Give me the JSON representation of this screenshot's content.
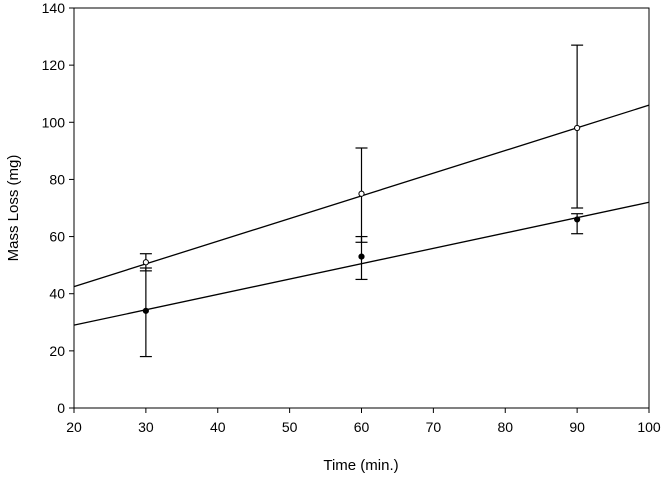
{
  "chart_data": {
    "type": "scatter",
    "title": "",
    "xlabel": "Time (min.)",
    "ylabel": "Mass Loss (mg)",
    "xlim": [
      20,
      100
    ],
    "ylim": [
      0,
      140
    ],
    "xticks": [
      20,
      30,
      40,
      50,
      60,
      70,
      80,
      90,
      100
    ],
    "yticks": [
      0,
      20,
      40,
      60,
      80,
      100,
      120,
      140
    ],
    "grid": false,
    "series": [
      {
        "name": "open circles",
        "marker": "open-circle",
        "x": [
          30,
          60,
          90
        ],
        "y": [
          51,
          75,
          98
        ],
        "err_low": [
          48,
          58,
          70
        ],
        "err_high": [
          54,
          91,
          127
        ],
        "fit_line": {
          "x": [
            20,
            100
          ],
          "y": [
            42.5,
            106
          ]
        }
      },
      {
        "name": "filled circles",
        "marker": "filled-circle",
        "x": [
          30,
          60,
          90
        ],
        "y": [
          34,
          53,
          66
        ],
        "err_low": [
          18,
          45,
          61
        ],
        "err_high": [
          49,
          60,
          68
        ],
        "fit_line": {
          "x": [
            20,
            100
          ],
          "y": [
            29,
            72
          ]
        }
      }
    ]
  }
}
